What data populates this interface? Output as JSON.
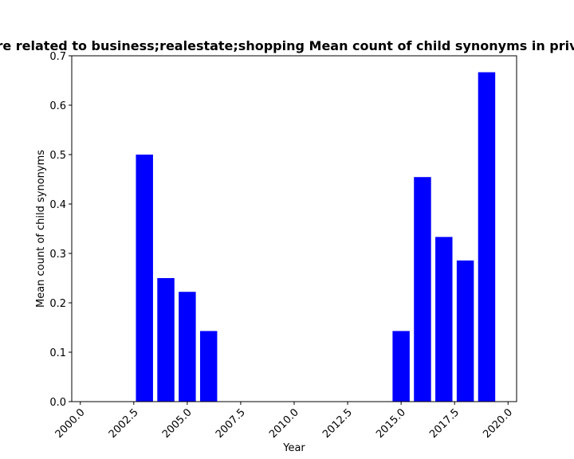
{
  "chart_data": {
    "type": "bar",
    "title": "Chart of ... are related to business;realestate;shopping Mean count of child synonyms in private",
    "visible_title": "re related to business;realestate;shopping Mean count of child synonyms in priv",
    "xlabel": "Year",
    "ylabel": "Mean count of child synonyms",
    "x": [
      2003,
      2004,
      2005,
      2006,
      2015,
      2016,
      2017,
      2018,
      2019
    ],
    "values": [
      0.5,
      0.25,
      0.2222,
      0.1429,
      0.1429,
      0.4545,
      0.3333,
      0.2857,
      0.6667
    ],
    "xlim": [
      1999.6,
      2020.4
    ],
    "ylim": [
      0,
      0.7
    ],
    "x_ticks": [
      "2000.0",
      "2002.5",
      "2005.0",
      "2007.5",
      "2010.0",
      "2012.5",
      "2015.0",
      "2017.5",
      "2020.0"
    ],
    "y_ticks": [
      "0.0",
      "0.1",
      "0.2",
      "0.3",
      "0.4",
      "0.5",
      "0.6",
      "0.7"
    ],
    "bar_color": "#0000ff",
    "grid": false,
    "legend": "none"
  }
}
